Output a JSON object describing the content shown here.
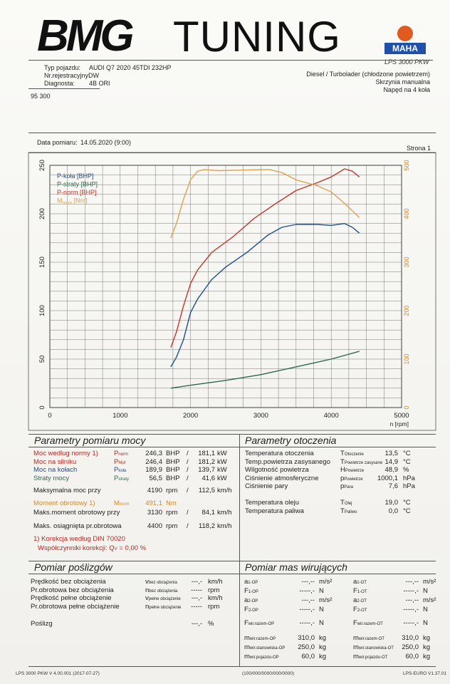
{
  "header": {
    "logo_main": "BMG",
    "logo_sub": "TUNING",
    "maha_label": "MAHA",
    "model": "LPS 3000 PKW",
    "vehicle_type_label": "Typ pojazdu:",
    "vehicle_type_value": "AUDI Q7 2020 45TDI 232HP",
    "reg_label": "Nr.rejestracyjnyDW",
    "diag_label": "Diagnosta:",
    "diag_value": "4B ORI",
    "fuel": "Diesel / Turbolader (chłodzone powietrzem)",
    "gearbox": "Skrzynia manualna",
    "drive": "Napęd na 4 koła",
    "id": "95 300",
    "date_label": "Data pomiaru:",
    "date_value": "14.05.2020 (9:00)",
    "page_label": "Strona 1"
  },
  "chart_data": {
    "type": "line",
    "x_label": "n [rpm]",
    "xlim": [
      0,
      5000
    ],
    "x_ticks": [
      0,
      1000,
      2000,
      3000,
      4000,
      5000
    ],
    "ylim_left": [
      0,
      250
    ],
    "y_ticks_left": [
      0,
      50,
      100,
      150,
      200,
      250
    ],
    "ylim_right": [
      0,
      500
    ],
    "y_ticks_right": [
      0,
      100,
      200,
      300,
      400,
      500
    ],
    "grid": true,
    "legend_position": "top-left",
    "legend": [
      {
        "label": "P-koła [BHP]",
        "color": "#1f4e8c"
      },
      {
        "label": "P-straty [BHP]",
        "color": "#2d6a4f"
      },
      {
        "label": "P-norm [BHP]",
        "color": "#c0392b"
      },
      {
        "label": "Mnorm [Nm]",
        "color": "#e0a050"
      }
    ],
    "series": [
      {
        "name": "P-koła [BHP]",
        "axis": "left",
        "color": "#1f4e8c",
        "x": [
          1720,
          1800,
          1900,
          2000,
          2100,
          2300,
          2500,
          2800,
          3100,
          3300,
          3500,
          3800,
          4000,
          4190,
          4300,
          4400
        ],
        "y": [
          42,
          52,
          70,
          98,
          112,
          132,
          145,
          160,
          178,
          186,
          189,
          189,
          188,
          189.9,
          186,
          180
        ]
      },
      {
        "name": "P-straty [BHP]",
        "axis": "left",
        "color": "#2d6a4f",
        "x": [
          1720,
          2000,
          2500,
          3000,
          3500,
          4000,
          4400
        ],
        "y": [
          20,
          23,
          28,
          34,
          42,
          50,
          58
        ]
      },
      {
        "name": "P-norm [BHP]",
        "axis": "left",
        "color": "#c0392b",
        "x": [
          1720,
          1800,
          1900,
          2000,
          2100,
          2300,
          2600,
          2900,
          3200,
          3500,
          3800,
          4000,
          4190,
          4300,
          4400
        ],
        "y": [
          62,
          78,
          105,
          128,
          142,
          160,
          176,
          195,
          210,
          224,
          232,
          238,
          246.3,
          244,
          238
        ]
      },
      {
        "name": "Mnorm [Nm]",
        "axis": "right",
        "color": "#e0a050",
        "x": [
          1720,
          1800,
          1900,
          2000,
          2100,
          2200,
          2400,
          2700,
          3000,
          3130,
          3300,
          3500,
          3800,
          4000,
          4200,
          4400
        ],
        "y": [
          350,
          380,
          430,
          470,
          488,
          491,
          489,
          490,
          491,
          491.1,
          485,
          470,
          458,
          445,
          420,
          392
        ]
      }
    ]
  },
  "power": {
    "title": "Parametry pomiaru mocy",
    "rows": [
      {
        "label": "Moc według normy 1)",
        "sym": "P",
        "sub": "norm",
        "v1": "246,3",
        "u1": "BHP",
        "v2": "181,1",
        "u2": "kW"
      },
      {
        "label": "Moc na silniku",
        "sym": "P",
        "sub": "Mot",
        "v1": "246,4",
        "u1": "BHP",
        "v2": "181,2",
        "u2": "kW"
      },
      {
        "label": "Moc na kołach",
        "sym": "P",
        "sub": "koła",
        "v1": "189,9",
        "u1": "BHP",
        "v2": "139,7",
        "u2": "kW"
      },
      {
        "label": "Straty mocy",
        "sym": "P",
        "sub": "straty",
        "v1": "56,5",
        "u1": "BHP",
        "v2": "41,6",
        "u2": "kW"
      }
    ],
    "max_power_label": "Maksymalna moc przy",
    "max_power_rpm": "4190",
    "max_power_kmh": "112,5",
    "torque_label": "Moment obrotowy 1)",
    "torque_sym": "M",
    "torque_sub": "norm",
    "torque_value": "491,1",
    "torque_unit": "Nm",
    "max_torque_label": "Maks.moment obrotowy przy",
    "max_torque_rpm": "3130",
    "max_torque_kmh": "84,1",
    "max_speed_label": "Maks. osiągnięta pr.obrotowa",
    "max_speed_rpm": "4400",
    "max_speed_kmh": "118,2",
    "rpm_unit": "rpm",
    "kmh_unit": "km/h",
    "slash": "/",
    "corr_label": "1) Korekcja według DIN 70020",
    "corr_factor_label": "Współczynniki korekcji: Q",
    "corr_factor_sub": "V",
    "corr_factor_value": "= 0,00 %"
  },
  "env": {
    "title": "Parametry otoczenia",
    "rows": [
      {
        "label": "Temperatura otoczenia",
        "sym": "T",
        "sub": "Otoczenie",
        "value": "13,5",
        "unit": "°C"
      },
      {
        "label": "Temp.powietrza zasysanego",
        "sym": "T",
        "sub": "Powietrze zasysane",
        "value": "14,9",
        "unit": "°C"
      },
      {
        "label": "Wilgotność powietrza",
        "sym": "H",
        "sub": "Powietrze",
        "value": "48,9",
        "unit": "%"
      },
      {
        "label": "Ciśnienie atmosferyczne",
        "sym": "p",
        "sub": "Powietrze",
        "value": "1000,1",
        "unit": "hPa"
      },
      {
        "label": "Ciśnienie pary",
        "sym": "p",
        "sub": "Para",
        "value": "7,6",
        "unit": "hPa"
      },
      {
        "label": "Temperatura oleju",
        "sym": "T",
        "sub": "Olej",
        "value": "19,0",
        "unit": "°C"
      },
      {
        "label": "Temperatura paliwa",
        "sym": "T",
        "sub": "Paliwo",
        "value": "0,0",
        "unit": "°C"
      }
    ]
  },
  "slip": {
    "title": "Pomiar poślizgów",
    "rows": [
      {
        "label": "Prędkość bez obciążenia",
        "sym": "v",
        "sub": "bez obciążenia",
        "value": "---,-",
        "unit": "km/h"
      },
      {
        "label": "Pr.obrotowa bez obciążenia",
        "sym": "n",
        "sub": "bez obciążenia",
        "value": "-----",
        "unit": "rpm"
      },
      {
        "label": "Prędkość pełne obciążenie",
        "sym": "v",
        "sub": "pełne obciążenie",
        "value": "---,-",
        "unit": "km/h"
      },
      {
        "label": "Pr.obrotowa pełne obciążenie",
        "sym": "n",
        "sub": "pełne obciążenie",
        "value": "-----",
        "unit": "rpm"
      }
    ],
    "slip_label": "Poślizg",
    "slip_value": "---,-",
    "slip_unit": "%"
  },
  "mass": {
    "title": "Pomiar mas wirujących",
    "left": [
      {
        "sym": "a",
        "sub": "1-OP",
        "value": "---,--",
        "unit": "m/s²"
      },
      {
        "sym": "F",
        "sub": "1-OP",
        "value": "-----,-",
        "unit": "N"
      },
      {
        "sym": "a",
        "sub": "2-OP",
        "value": "---,--",
        "unit": "m/s²"
      },
      {
        "sym": "F",
        "sub": "2-OP",
        "value": "-----,-",
        "unit": "N"
      },
      {
        "sym": "F",
        "sub": "wir.razem-OP",
        "value": "-----,-",
        "unit": "N"
      },
      {
        "sym": "m",
        "sub": "wir.razem-OP",
        "value": "310,0",
        "unit": "kg"
      },
      {
        "sym": "m",
        "sub": "wir.stanowiska-OP",
        "value": "250,0",
        "unit": "kg"
      },
      {
        "sym": "m",
        "sub": "wir.pojazdu-OP",
        "value": "60,0",
        "unit": "kg"
      }
    ],
    "right": [
      {
        "sym": "a",
        "sub": "1-OT",
        "value": "---,--",
        "unit": "m/s²"
      },
      {
        "sym": "F",
        "sub": "1-OT",
        "value": "-----,-",
        "unit": "N"
      },
      {
        "sym": "a",
        "sub": "2-OT",
        "value": "---,--",
        "unit": "m/s²"
      },
      {
        "sym": "F",
        "sub": "2-OT",
        "value": "-----,-",
        "unit": "N"
      },
      {
        "sym": "F",
        "sub": "wir.razem-OT",
        "value": "-----,-",
        "unit": "N"
      },
      {
        "sym": "m",
        "sub": "wir.razem-OT",
        "value": "310,0",
        "unit": "kg"
      },
      {
        "sym": "m",
        "sub": "wir.stanowiska-OT",
        "value": "250,0",
        "unit": "kg"
      },
      {
        "sym": "m",
        "sub": "wir.pojazdu-OT",
        "value": "60,0",
        "unit": "kg"
      }
    ]
  },
  "footer": {
    "left": "LPS 3000 PKW V 4.00.001 (2017-07-27)",
    "center": "(100/000/0000/000/0000)",
    "right": "LPS-EURO V1.37.01"
  }
}
